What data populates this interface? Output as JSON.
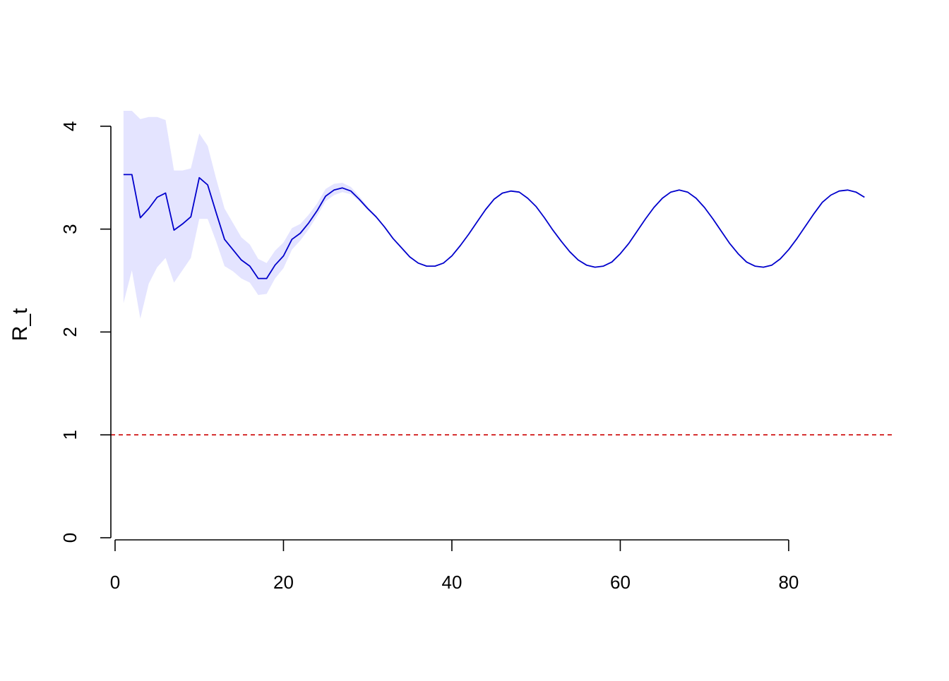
{
  "chart_data": {
    "type": "line",
    "title": "",
    "xlabel": "",
    "ylabel": "R_t",
    "xlim": [
      -0.5,
      92.5
    ],
    "ylim": [
      0,
      4.15
    ],
    "x_ticks": [
      0,
      20,
      40,
      60,
      80
    ],
    "y_ticks": [
      0,
      1,
      2,
      3,
      4
    ],
    "grid": false,
    "legend": "none",
    "colors": {
      "line": "#0000cc",
      "band": "#e4e4ff",
      "reference": "#cc0000",
      "axis": "#000000"
    },
    "reference_line": {
      "y": 1,
      "style": "dashed"
    },
    "series": [
      {
        "x": [
          1,
          2,
          3,
          4,
          5,
          6,
          7,
          8,
          9,
          10,
          11,
          12,
          13,
          14,
          15,
          16,
          17,
          18,
          19,
          20,
          21,
          22,
          23,
          24,
          25,
          26,
          27,
          28,
          29,
          30,
          31,
          32,
          33,
          34,
          35,
          36,
          37,
          38,
          39,
          40,
          41,
          42,
          43,
          44,
          45,
          46,
          47,
          48,
          49,
          50,
          51,
          52,
          53,
          54,
          55,
          56,
          57,
          58,
          59,
          60,
          61,
          62,
          63,
          64,
          65,
          66,
          67,
          68,
          69,
          70,
          71,
          72,
          73,
          74,
          75,
          76,
          77,
          78,
          79,
          80,
          81,
          82,
          83,
          84,
          85,
          86,
          87,
          88,
          89
        ],
        "values": [
          3.53,
          3.53,
          3.11,
          3.2,
          3.31,
          3.35,
          2.99,
          3.05,
          3.12,
          3.5,
          3.43,
          3.16,
          2.9,
          2.8,
          2.7,
          2.64,
          2.52,
          2.52,
          2.65,
          2.74,
          2.9,
          2.96,
          3.06,
          3.18,
          3.32,
          3.38,
          3.4,
          3.37,
          3.29,
          3.2,
          3.12,
          3.02,
          2.91,
          2.82,
          2.73,
          2.67,
          2.64,
          2.64,
          2.67,
          2.74,
          2.84,
          2.95,
          3.07,
          3.19,
          3.29,
          3.35,
          3.37,
          3.36,
          3.3,
          3.22,
          3.11,
          2.99,
          2.88,
          2.78,
          2.7,
          2.65,
          2.63,
          2.64,
          2.68,
          2.76,
          2.86,
          2.98,
          3.1,
          3.21,
          3.3,
          3.36,
          3.38,
          3.36,
          3.3,
          3.21,
          3.1,
          2.98,
          2.86,
          2.76,
          2.68,
          2.64,
          2.63,
          2.65,
          2.71,
          2.8,
          2.91,
          3.03,
          3.15,
          3.26,
          3.33,
          3.37,
          3.38,
          3.36,
          3.31
        ],
        "lower": [
          2.28,
          2.6,
          2.13,
          2.47,
          2.63,
          2.72,
          2.48,
          2.6,
          2.72,
          3.1,
          3.1,
          2.88,
          2.64,
          2.59,
          2.52,
          2.48,
          2.36,
          2.37,
          2.52,
          2.62,
          2.8,
          2.89,
          3.0,
          3.13,
          3.27,
          3.33,
          3.36,
          3.34,
          3.27,
          3.19,
          3.11,
          3.02,
          2.91,
          2.82,
          2.73,
          2.67,
          2.64,
          2.64,
          2.67,
          2.74,
          2.84,
          2.95,
          3.07,
          3.19,
          3.29,
          3.35,
          3.37,
          3.36,
          3.3,
          3.22,
          3.11,
          2.99,
          2.88,
          2.78,
          2.7,
          2.65,
          2.63,
          2.64,
          2.68,
          2.76,
          2.86,
          2.98,
          3.1,
          3.21,
          3.3,
          3.36,
          3.38,
          3.36,
          3.3,
          3.21,
          3.1,
          2.98,
          2.86,
          2.76,
          2.68,
          2.64,
          2.63,
          2.65,
          2.71,
          2.8,
          2.91,
          3.03,
          3.15,
          3.26,
          3.33,
          3.37,
          3.38,
          3.36,
          3.31
        ],
        "upper": [
          4.15,
          4.15,
          4.07,
          4.09,
          4.09,
          4.06,
          3.57,
          3.57,
          3.59,
          3.93,
          3.81,
          3.49,
          3.2,
          3.06,
          2.92,
          2.85,
          2.71,
          2.67,
          2.79,
          2.87,
          3.01,
          3.05,
          3.14,
          3.25,
          3.39,
          3.44,
          3.45,
          3.41,
          3.32,
          3.22,
          3.13,
          3.02,
          2.91,
          2.82,
          2.73,
          2.67,
          2.64,
          2.64,
          2.67,
          2.74,
          2.84,
          2.95,
          3.07,
          3.19,
          3.29,
          3.35,
          3.37,
          3.36,
          3.3,
          3.22,
          3.11,
          2.99,
          2.88,
          2.78,
          2.7,
          2.65,
          2.63,
          2.64,
          2.68,
          2.76,
          2.86,
          2.98,
          3.1,
          3.21,
          3.3,
          3.36,
          3.38,
          3.36,
          3.3,
          3.21,
          3.1,
          2.98,
          2.86,
          2.76,
          2.68,
          2.64,
          2.63,
          2.65,
          2.71,
          2.8,
          2.91,
          3.03,
          3.15,
          3.26,
          3.33,
          3.37,
          3.38,
          3.36,
          3.31
        ]
      }
    ]
  }
}
